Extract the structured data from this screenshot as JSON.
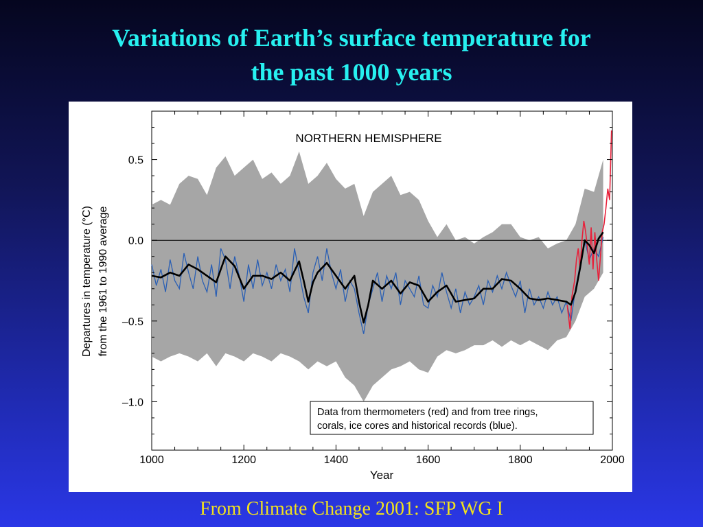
{
  "slide": {
    "title_line1": "Variations of  Earth’s surface temperature for",
    "title_line2": "the past 1000 years",
    "caption": "From Climate Change 2001: SFP WG I"
  },
  "chart_data": {
    "type": "line",
    "title": "NORTHERN HEMISPHERE",
    "xlabel": "Year",
    "ylabel_line1": "Departures in temperature (°C)",
    "ylabel_line2": "from the 1961 to 1990 average",
    "xlim": [
      1000,
      2000
    ],
    "ylim": [
      -1.3,
      0.8
    ],
    "x_ticks": [
      1000,
      1200,
      1400,
      1600,
      1800,
      2000
    ],
    "x_tick_labels": [
      "1000",
      "1200",
      "1400",
      "1600",
      "1800",
      "2000"
    ],
    "y_ticks": [
      0.5,
      0.0,
      -0.5,
      -1.0
    ],
    "y_tick_labels": [
      "0.5",
      "0.0",
      "–0.5",
      "–1.0"
    ],
    "legend_line1": "Data from thermometers (red) and from tree rings,",
    "legend_line2": "corals, ice cores and historical records (blue).",
    "legend_position": "bottom-right",
    "colors": {
      "thermometer": "#e8203a",
      "proxy": "#2a5fb4",
      "uncertainty": "#a6a6a6",
      "smoothed": "#000000"
    },
    "series": [
      {
        "name": "smoothed",
        "x": [
          1000,
          1020,
          1040,
          1060,
          1080,
          1100,
          1120,
          1140,
          1150,
          1160,
          1180,
          1200,
          1220,
          1240,
          1260,
          1280,
          1300,
          1320,
          1330,
          1340,
          1350,
          1360,
          1380,
          1400,
          1420,
          1440,
          1450,
          1460,
          1470,
          1480,
          1500,
          1520,
          1540,
          1560,
          1580,
          1600,
          1620,
          1640,
          1660,
          1680,
          1700,
          1720,
          1740,
          1760,
          1780,
          1800,
          1820,
          1840,
          1860,
          1880,
          1900,
          1910,
          1920,
          1930,
          1940,
          1950,
          1960,
          1970,
          1980
        ],
        "y": [
          -0.22,
          -0.23,
          -0.2,
          -0.22,
          -0.15,
          -0.18,
          -0.22,
          -0.26,
          -0.18,
          -0.1,
          -0.16,
          -0.3,
          -0.22,
          -0.22,
          -0.24,
          -0.2,
          -0.25,
          -0.13,
          -0.25,
          -0.38,
          -0.26,
          -0.2,
          -0.14,
          -0.22,
          -0.3,
          -0.22,
          -0.38,
          -0.51,
          -0.4,
          -0.25,
          -0.3,
          -0.25,
          -0.33,
          -0.26,
          -0.28,
          -0.38,
          -0.32,
          -0.28,
          -0.38,
          -0.37,
          -0.36,
          -0.3,
          -0.3,
          -0.24,
          -0.25,
          -0.3,
          -0.36,
          -0.37,
          -0.36,
          -0.37,
          -0.38,
          -0.4,
          -0.32,
          -0.17,
          0.0,
          -0.03,
          -0.08,
          0.01,
          0.05
        ]
      },
      {
        "name": "proxy_upper",
        "x": [
          1000,
          1020,
          1040,
          1060,
          1080,
          1100,
          1120,
          1140,
          1160,
          1180,
          1200,
          1220,
          1240,
          1260,
          1280,
          1300,
          1320,
          1340,
          1360,
          1380,
          1400,
          1420,
          1440,
          1460,
          1480,
          1500,
          1520,
          1540,
          1560,
          1580,
          1600,
          1620,
          1640,
          1660,
          1680,
          1700,
          1720,
          1740,
          1760,
          1780,
          1800,
          1820,
          1840,
          1860,
          1880,
          1900,
          1920,
          1940,
          1960,
          1980
        ],
        "y": [
          0.22,
          0.25,
          0.22,
          0.35,
          0.4,
          0.38,
          0.28,
          0.45,
          0.52,
          0.4,
          0.45,
          0.5,
          0.38,
          0.42,
          0.35,
          0.4,
          0.55,
          0.35,
          0.4,
          0.48,
          0.38,
          0.32,
          0.35,
          0.15,
          0.3,
          0.35,
          0.4,
          0.28,
          0.3,
          0.25,
          0.12,
          0.02,
          0.1,
          0.0,
          0.02,
          -0.02,
          0.02,
          0.05,
          0.1,
          0.1,
          0.02,
          0.0,
          0.02,
          -0.05,
          -0.02,
          0.0,
          0.1,
          0.32,
          0.3,
          0.5
        ]
      },
      {
        "name": "proxy_lower",
        "x": [
          1000,
          1020,
          1040,
          1060,
          1080,
          1100,
          1120,
          1140,
          1160,
          1180,
          1200,
          1220,
          1240,
          1260,
          1280,
          1300,
          1320,
          1340,
          1360,
          1380,
          1400,
          1420,
          1440,
          1460,
          1480,
          1500,
          1520,
          1540,
          1560,
          1580,
          1600,
          1620,
          1640,
          1660,
          1680,
          1700,
          1720,
          1740,
          1760,
          1780,
          1800,
          1820,
          1840,
          1860,
          1880,
          1900,
          1920,
          1940,
          1960,
          1980
        ],
        "y": [
          -0.72,
          -0.75,
          -0.72,
          -0.7,
          -0.72,
          -0.75,
          -0.7,
          -0.78,
          -0.7,
          -0.72,
          -0.75,
          -0.7,
          -0.72,
          -0.75,
          -0.7,
          -0.72,
          -0.75,
          -0.8,
          -0.75,
          -0.78,
          -0.75,
          -0.85,
          -0.9,
          -1.0,
          -0.9,
          -0.85,
          -0.8,
          -0.78,
          -0.75,
          -0.8,
          -0.82,
          -0.72,
          -0.68,
          -0.7,
          -0.68,
          -0.65,
          -0.65,
          -0.62,
          -0.66,
          -0.62,
          -0.65,
          -0.62,
          -0.65,
          -0.68,
          -0.62,
          -0.6,
          -0.5,
          -0.35,
          -0.3,
          -0.2
        ]
      },
      {
        "name": "proxy",
        "x": [
          1000,
          1010,
          1020,
          1030,
          1040,
          1050,
          1060,
          1070,
          1080,
          1090,
          1100,
          1110,
          1120,
          1130,
          1140,
          1150,
          1160,
          1170,
          1180,
          1190,
          1200,
          1210,
          1220,
          1230,
          1240,
          1250,
          1260,
          1270,
          1280,
          1290,
          1300,
          1310,
          1320,
          1330,
          1340,
          1350,
          1360,
          1370,
          1380,
          1390,
          1400,
          1410,
          1420,
          1430,
          1440,
          1450,
          1460,
          1470,
          1480,
          1490,
          1500,
          1510,
          1520,
          1530,
          1540,
          1550,
          1560,
          1570,
          1580,
          1590,
          1600,
          1610,
          1620,
          1630,
          1640,
          1650,
          1660,
          1670,
          1680,
          1690,
          1700,
          1710,
          1720,
          1730,
          1740,
          1750,
          1760,
          1770,
          1780,
          1790,
          1800,
          1810,
          1820,
          1830,
          1840,
          1850,
          1860,
          1870,
          1880,
          1890,
          1900,
          1910,
          1920,
          1930,
          1940,
          1950,
          1960,
          1970,
          1980
        ],
        "y": [
          -0.15,
          -0.28,
          -0.18,
          -0.32,
          -0.12,
          -0.25,
          -0.3,
          -0.08,
          -0.2,
          -0.3,
          -0.1,
          -0.25,
          -0.32,
          -0.15,
          -0.35,
          -0.05,
          -0.12,
          -0.3,
          -0.1,
          -0.22,
          -0.38,
          -0.15,
          -0.3,
          -0.12,
          -0.28,
          -0.2,
          -0.3,
          -0.15,
          -0.25,
          -0.18,
          -0.32,
          -0.05,
          -0.2,
          -0.35,
          -0.45,
          -0.2,
          -0.1,
          -0.25,
          -0.05,
          -0.2,
          -0.3,
          -0.18,
          -0.38,
          -0.25,
          -0.3,
          -0.45,
          -0.58,
          -0.4,
          -0.3,
          -0.2,
          -0.38,
          -0.22,
          -0.3,
          -0.2,
          -0.4,
          -0.25,
          -0.3,
          -0.35,
          -0.22,
          -0.4,
          -0.42,
          -0.28,
          -0.35,
          -0.2,
          -0.32,
          -0.42,
          -0.3,
          -0.45,
          -0.32,
          -0.4,
          -0.35,
          -0.28,
          -0.4,
          -0.25,
          -0.32,
          -0.22,
          -0.3,
          -0.2,
          -0.28,
          -0.35,
          -0.25,
          -0.45,
          -0.3,
          -0.4,
          -0.35,
          -0.42,
          -0.32,
          -0.4,
          -0.35,
          -0.45,
          -0.38,
          -0.5,
          -0.3,
          -0.15,
          0.0,
          -0.12,
          -0.05,
          -0.1,
          0.02
        ]
      },
      {
        "name": "thermometer",
        "x": [
          1902,
          1908,
          1912,
          1918,
          1922,
          1926,
          1930,
          1934,
          1938,
          1942,
          1946,
          1950,
          1954,
          1958,
          1962,
          1966,
          1970,
          1974,
          1978,
          1982,
          1986,
          1990,
          1994,
          1998
        ],
        "y": [
          -0.4,
          -0.55,
          -0.35,
          -0.25,
          -0.12,
          -0.05,
          -0.18,
          0.0,
          0.12,
          0.05,
          -0.05,
          -0.15,
          0.08,
          -0.18,
          0.05,
          -0.12,
          -0.25,
          -0.1,
          0.05,
          0.1,
          0.2,
          0.32,
          0.25,
          0.68
        ]
      }
    ]
  }
}
